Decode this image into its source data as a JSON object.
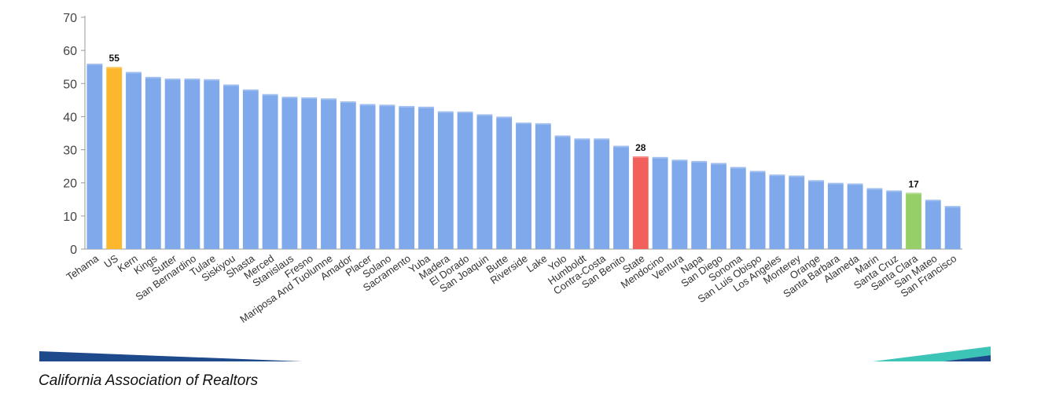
{
  "chart_data": {
    "type": "bar",
    "categories": [
      "Tehama",
      "US",
      "Kern",
      "Kings",
      "Sutter",
      "San Bernardino",
      "Tulare",
      "Siskiyou",
      "Shasta",
      "Merced",
      "Stanislaus",
      "Fresno",
      "Mariposa And Tuolumne",
      "Amador",
      "Placer",
      "Solano",
      "Sacramento",
      "Yuba",
      "Madera",
      "El Dorado",
      "San Joaquin",
      "Butte",
      "Riverside",
      "Lake",
      "Yolo",
      "Humboldt",
      "Contra-Costa",
      "San Benito",
      "State",
      "Mendocino",
      "Ventura",
      "Napa",
      "San Diego",
      "Sonoma",
      "San Luis Obispo",
      "Los Angeles",
      "Monterey",
      "Orange",
      "Santa Barbara",
      "Alameda",
      "Marin",
      "Santa Cruz",
      "Santa Clara",
      "San Mateo",
      "San Francisco"
    ],
    "values": [
      56,
      55,
      53.5,
      52,
      51.5,
      51.5,
      51.3,
      49.7,
      48.2,
      46.8,
      46,
      45.8,
      45.5,
      44.6,
      43.8,
      43.6,
      43.2,
      43,
      41.6,
      41.5,
      40.7,
      40,
      38.2,
      38,
      34.3,
      33.4,
      33.4,
      31.2,
      28,
      27.8,
      27,
      26.6,
      26,
      24.8,
      23.6,
      22.5,
      22.2,
      20.8,
      20,
      19.8,
      18.4,
      17.7,
      17,
      14.9,
      13
    ],
    "ylim": [
      0,
      70
    ],
    "yticks": [
      "0",
      "10",
      "20",
      "30",
      "40",
      "50",
      "60",
      "70"
    ],
    "default_color": "#7fa9ea",
    "highlights": [
      {
        "category": "US",
        "color": "#fcb72c",
        "label": "55"
      },
      {
        "category": "State",
        "color": "#f1605a",
        "label": "28"
      },
      {
        "category": "Santa Clara",
        "color": "#96cf68",
        "label": "17"
      }
    ],
    "grid": false,
    "legend": "none"
  },
  "footer": {
    "source": "California Association of Realtors",
    "colors": {
      "left_stripe": "#1e4a8b",
      "right_stripe_teal": "#3cc4b6",
      "right_stripe_navy": "#1e4a8b"
    }
  }
}
